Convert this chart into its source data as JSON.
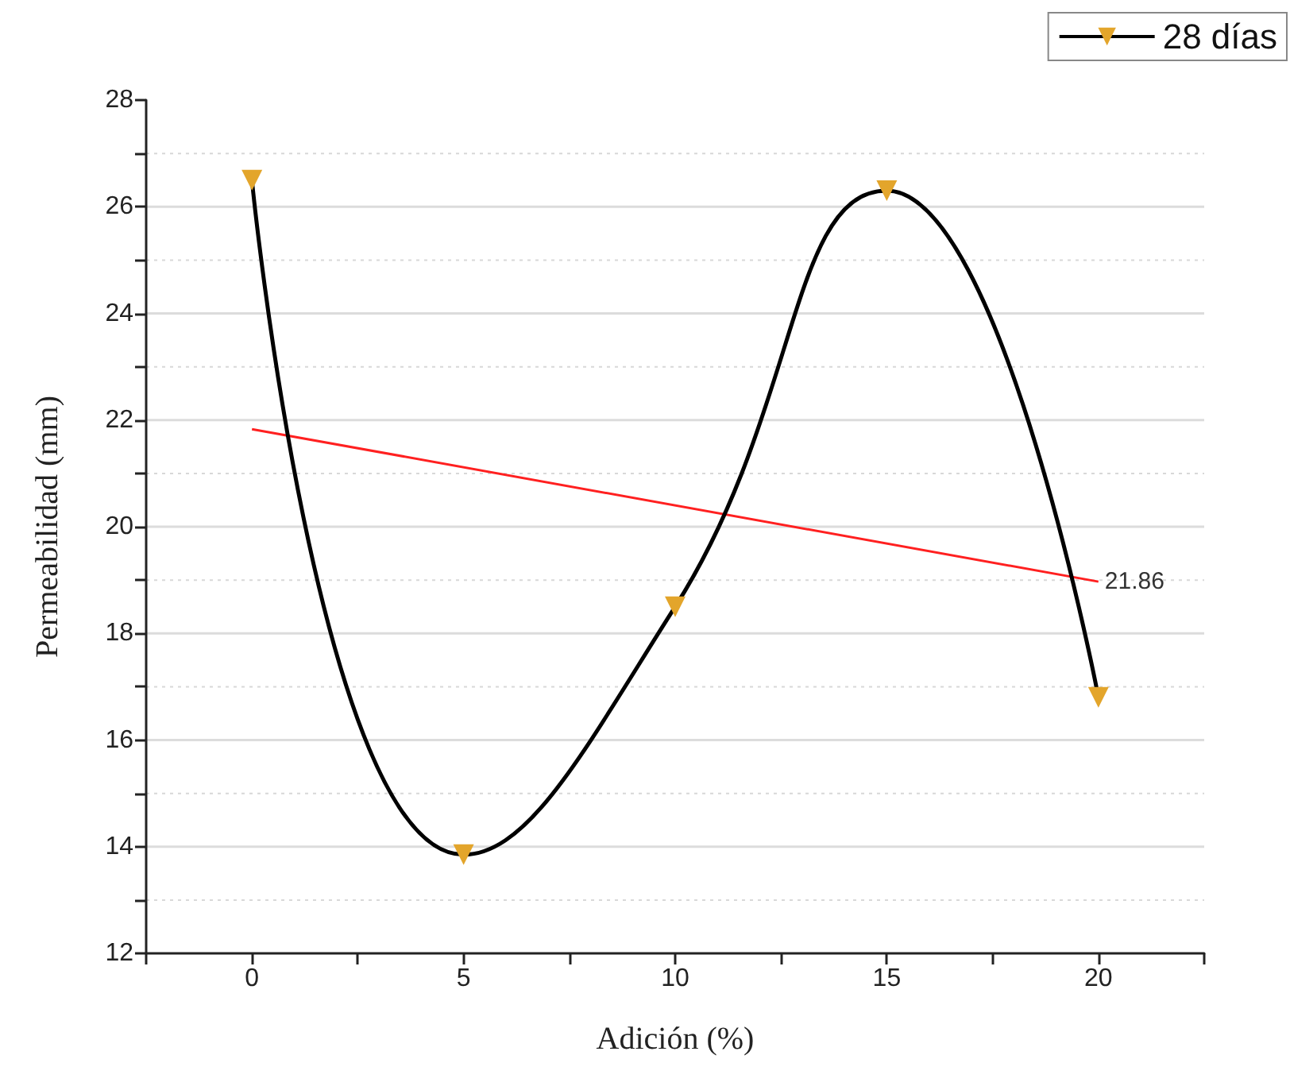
{
  "chart_data": {
    "type": "line",
    "xlabel": "Adición (%)",
    "ylabel": "Permeabilidad (mm)",
    "x": [
      0,
      5,
      10,
      15,
      20
    ],
    "series": [
      {
        "name": "28 días",
        "color": "#e3a52b",
        "values": [
          26.5,
          13.85,
          18.5,
          26.3,
          16.8
        ],
        "marker": "triangle"
      },
      {
        "type": "line",
        "color": "#ff2020",
        "x": [
          0,
          20
        ],
        "values": [
          21.83,
          18.97
        ],
        "marker": "none"
      }
    ],
    "annotations": [
      {
        "text": "21.86",
        "x": 20,
        "y": 18.97
      }
    ],
    "xlim": [
      -2.5,
      22.5
    ],
    "xticks": [
      {
        "value": -2.5,
        "label": null
      },
      0,
      {
        "value": 2.5,
        "label": null
      },
      5,
      {
        "value": 7.5,
        "label": null
      },
      10,
      {
        "value": 12.5,
        "label": null
      },
      15,
      {
        "value": 17.5,
        "label": null
      },
      20,
      {
        "value": 22.5,
        "label": null
      }
    ],
    "ylim": [
      12,
      28
    ],
    "yticks": [
      12,
      {
        "value": 13,
        "label": null
      },
      14,
      {
        "value": 15,
        "label": null
      },
      16,
      {
        "value": 17,
        "label": null
      },
      18,
      {
        "value": 19,
        "label": null
      },
      20,
      {
        "value": 21,
        "label": null
      },
      22,
      {
        "value": 23,
        "label": null
      },
      24,
      {
        "value": 25,
        "label": null
      },
      26,
      {
        "value": 27,
        "label": null
      },
      28
    ],
    "grid": "y",
    "legend": "top right"
  }
}
